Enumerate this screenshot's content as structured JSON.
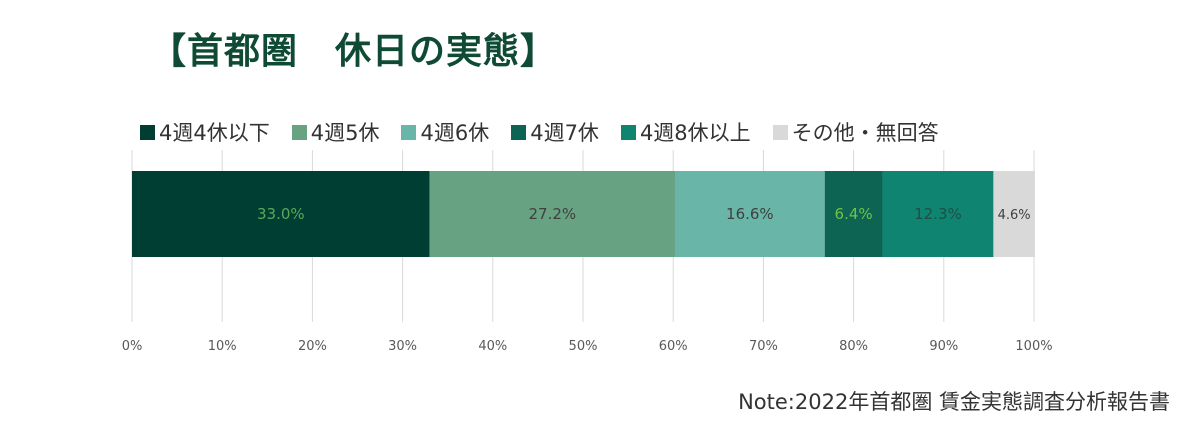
{
  "title": "【首都圏　休日の実態】",
  "note": "Note:2022年首都圏 賃金実態調査分析報告書",
  "chart_data": {
    "type": "bar",
    "orientation": "horizontal-stacked-100",
    "categories": [
      ""
    ],
    "series": [
      {
        "name": "4週4休以下",
        "values": [
          33.0
        ],
        "label": "33.0%",
        "color": "#003d32",
        "label_color": "#5aa85a"
      },
      {
        "name": "4週5休",
        "values": [
          27.2
        ],
        "label": "27.2%",
        "color": "#67a382",
        "label_color": "#404040"
      },
      {
        "name": "4週6休",
        "values": [
          16.6
        ],
        "label": "16.6%",
        "color": "#69b5a8",
        "label_color": "#404040"
      },
      {
        "name": "4週7休",
        "values": [
          6.4
        ],
        "label": "6.4%",
        "color": "#0e6452",
        "label_color": "#6fc24a"
      },
      {
        "name": "4週8休以上",
        "values": [
          12.3
        ],
        "label": "12.3%",
        "color": "#0f8571",
        "label_color": "#1f4f44"
      },
      {
        "name": "その他・無回答",
        "values": [
          4.6
        ],
        "label": "4.6%",
        "color": "#d9d9d9",
        "label_color": "#404040"
      }
    ],
    "xlim": [
      0,
      100
    ],
    "x_ticks": [
      "0%",
      "10%",
      "20%",
      "30%",
      "40%",
      "50%",
      "60%",
      "70%",
      "80%",
      "90%",
      "100%"
    ],
    "grid": true,
    "legend_position": "top"
  }
}
